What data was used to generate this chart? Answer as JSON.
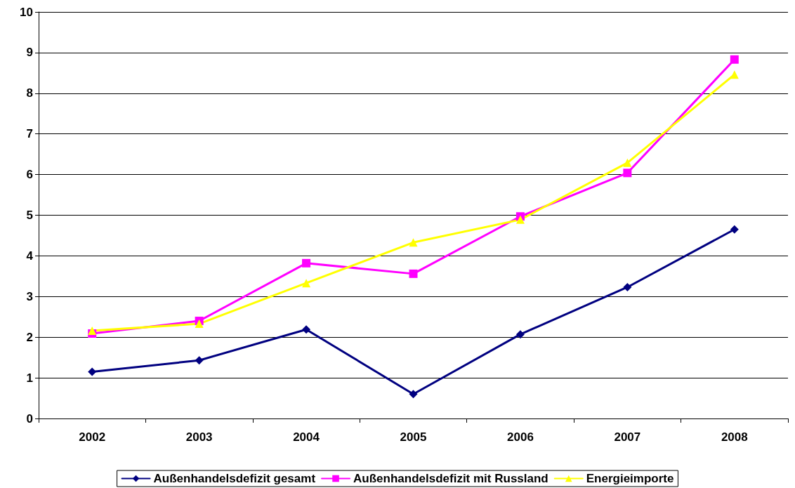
{
  "chart_data": {
    "type": "line",
    "categories": [
      "2002",
      "2003",
      "2004",
      "2005",
      "2006",
      "2007",
      "2008"
    ],
    "series": [
      {
        "name": "Außenhandelsdefizit gesamt",
        "color": "#000080",
        "marker": "diamond",
        "values": [
          1.15,
          1.43,
          2.19,
          0.6,
          2.07,
          3.23,
          4.65
        ]
      },
      {
        "name": "Außenhandelsdefizit mit Russland",
        "color": "#ff00ff",
        "marker": "square",
        "values": [
          2.09,
          2.4,
          3.82,
          3.56,
          4.97,
          6.04,
          8.83
        ]
      },
      {
        "name": "Energieimporte",
        "color": "#ffff00",
        "marker": "triangle",
        "values": [
          2.16,
          2.33,
          3.33,
          4.33,
          4.89,
          6.29,
          8.46
        ]
      }
    ],
    "ylim": [
      0,
      10
    ],
    "yticks": [
      0,
      1,
      2,
      3,
      4,
      5,
      6,
      7,
      8,
      9,
      10
    ],
    "grid": "y",
    "legend": "bottom",
    "line_style": "solid"
  }
}
